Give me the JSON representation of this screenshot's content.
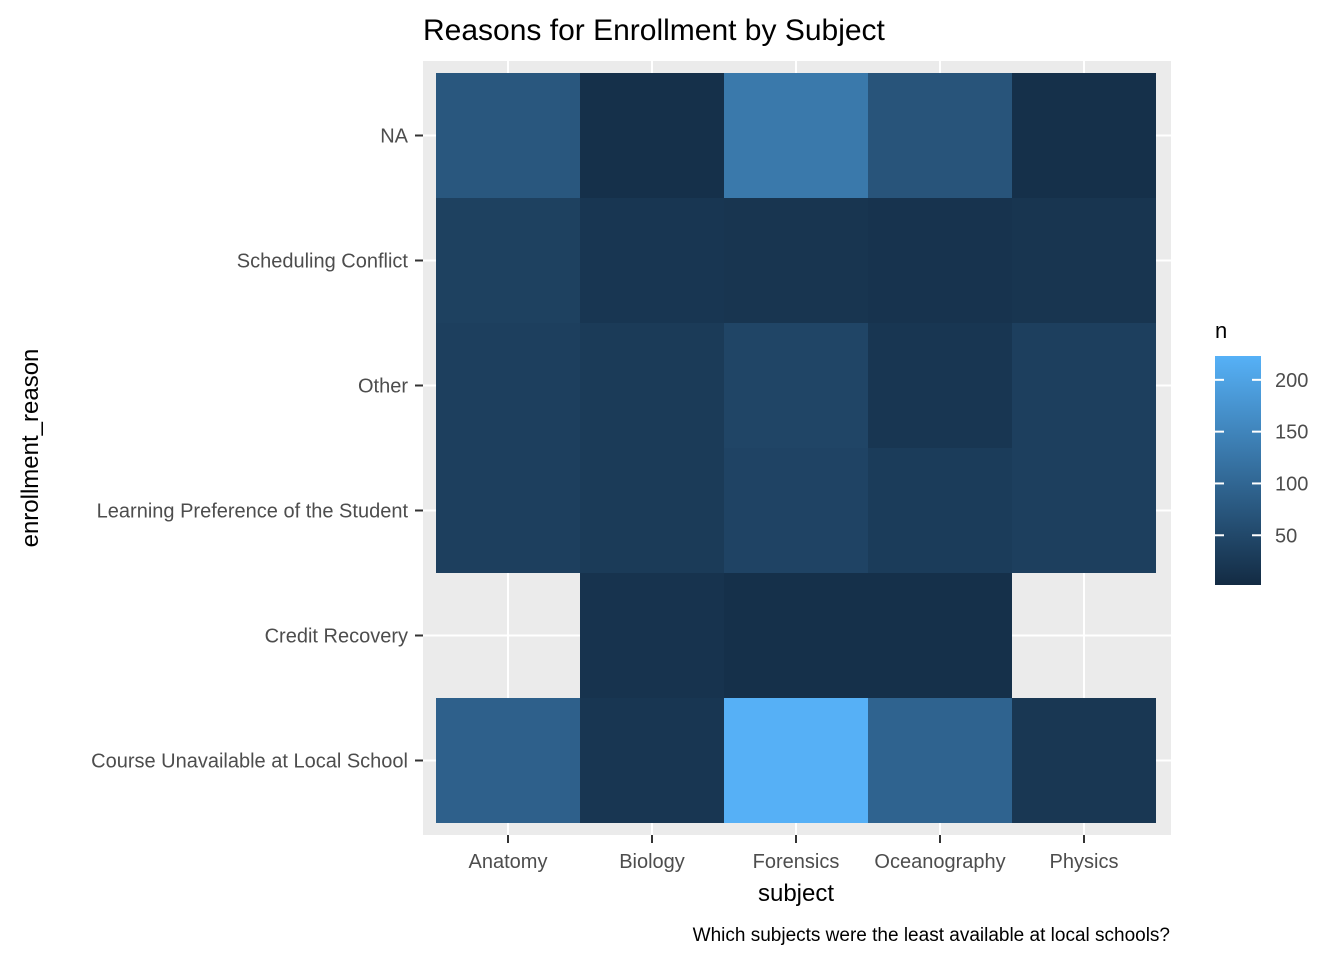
{
  "chart_data": {
    "type": "heatmap",
    "title": "Reasons for Enrollment by Subject",
    "xlabel": "subject",
    "ylabel": "enrollment_reason",
    "caption": "Which subjects were the least available at local schools?",
    "x_categories": [
      "Anatomy",
      "Biology",
      "Forensics",
      "Oceanography",
      "Physics"
    ],
    "y_categories": [
      "Course Unavailable at Local School",
      "Credit Recovery",
      "Learning Preference of the Student",
      "Other",
      "Scheduling Conflict",
      "NA"
    ],
    "cells": [
      {
        "x": "Anatomy",
        "y": "NA",
        "n": 75
      },
      {
        "x": "Biology",
        "y": "NA",
        "n": 10
      },
      {
        "x": "Forensics",
        "y": "NA",
        "n": 130
      },
      {
        "x": "Oceanography",
        "y": "NA",
        "n": 70
      },
      {
        "x": "Physics",
        "y": "NA",
        "n": 10
      },
      {
        "x": "Anatomy",
        "y": "Scheduling Conflict",
        "n": 38
      },
      {
        "x": "Biology",
        "y": "Scheduling Conflict",
        "n": 20
      },
      {
        "x": "Forensics",
        "y": "Scheduling Conflict",
        "n": 18
      },
      {
        "x": "Oceanography",
        "y": "Scheduling Conflict",
        "n": 15
      },
      {
        "x": "Physics",
        "y": "Scheduling Conflict",
        "n": 18
      },
      {
        "x": "Anatomy",
        "y": "Other",
        "n": 35
      },
      {
        "x": "Biology",
        "y": "Other",
        "n": 28
      },
      {
        "x": "Forensics",
        "y": "Other",
        "n": 45
      },
      {
        "x": "Oceanography",
        "y": "Other",
        "n": 20
      },
      {
        "x": "Physics",
        "y": "Other",
        "n": 35
      },
      {
        "x": "Anatomy",
        "y": "Learning Preference of the Student",
        "n": 35
      },
      {
        "x": "Biology",
        "y": "Learning Preference of the Student",
        "n": 28
      },
      {
        "x": "Forensics",
        "y": "Learning Preference of the Student",
        "n": 42
      },
      {
        "x": "Oceanography",
        "y": "Learning Preference of the Student",
        "n": 30
      },
      {
        "x": "Physics",
        "y": "Learning Preference of the Student",
        "n": 35
      },
      {
        "x": "Biology",
        "y": "Credit Recovery",
        "n": 15
      },
      {
        "x": "Forensics",
        "y": "Credit Recovery",
        "n": 10
      },
      {
        "x": "Oceanography",
        "y": "Credit Recovery",
        "n": 10
      },
      {
        "x": "Anatomy",
        "y": "Course Unavailable at Local School",
        "n": 90
      },
      {
        "x": "Biology",
        "y": "Course Unavailable at Local School",
        "n": 20
      },
      {
        "x": "Forensics",
        "y": "Course Unavailable at Local School",
        "n": 222
      },
      {
        "x": "Oceanography",
        "y": "Course Unavailable at Local School",
        "n": 95
      },
      {
        "x": "Physics",
        "y": "Course Unavailable at Local School",
        "n": 22
      }
    ],
    "legend": {
      "title": "n",
      "placement": "right",
      "min": 2,
      "max": 223,
      "breaks": [
        50,
        100,
        150,
        200
      ],
      "low_color": "#132B43",
      "high_color": "#56B1F7"
    },
    "panel_background": "#ebebeb",
    "grid": true
  }
}
